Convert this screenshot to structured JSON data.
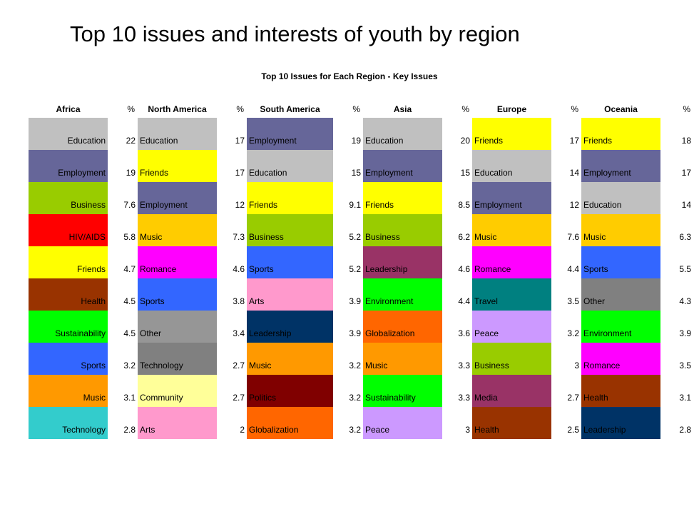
{
  "title": "Top 10 issues and interests of youth by region",
  "subtitle": "Top 10 Issues for Each Region - Key Issues",
  "colors": {
    "Education": "#c0c0c0",
    "Employment": "#666699",
    "Business": "#99cc00",
    "HIV/AIDS": "#ff0000",
    "Friends": "#ffff00",
    "Health": "#993300",
    "Sustainability": "#00ff00",
    "Sports": "#3366ff",
    "Music": "#ff9900",
    "Technology": "#33cccc",
    "Romance": "#ff00ff",
    "Other": "#969696",
    "Community": "#ffff99",
    "Arts": "#ff99cc",
    "Leadership": "#993366",
    "Politics": "#800000",
    "Globalization": "#ff6600",
    "Environment": "#00ff00",
    "Peace": "#cc99ff",
    "Travel": "#008080",
    "Media": "#993366"
  },
  "chart_data": {
    "type": "table",
    "title": "Top 10 issues and interests of youth by region",
    "subtitle": "Top 10 Issues for Each Region - Key Issues",
    "pct_label": "%",
    "regions": [
      {
        "name": "Africa",
        "rows": [
          {
            "issue": "Education",
            "value": "22",
            "color": "#c0c0c0"
          },
          {
            "issue": "Employment",
            "value": "19",
            "color": "#666699"
          },
          {
            "issue": "Business",
            "value": "7.6",
            "color": "#99cc00"
          },
          {
            "issue": "HIV/AIDS",
            "value": "5.8",
            "color": "#ff0000"
          },
          {
            "issue": "Friends",
            "value": "4.7",
            "color": "#ffff00"
          },
          {
            "issue": "Health",
            "value": "4.5",
            "color": "#993300"
          },
          {
            "issue": "Sustainability",
            "value": "4.5",
            "color": "#00ff00"
          },
          {
            "issue": "Sports",
            "value": "3.2",
            "color": "#3366ff"
          },
          {
            "issue": "Music",
            "value": "3.1",
            "color": "#ff9900"
          },
          {
            "issue": "Technology",
            "value": "2.8",
            "color": "#33cccc"
          }
        ]
      },
      {
        "name": "North America",
        "rows": [
          {
            "issue": "Education",
            "value": "17",
            "color": "#c0c0c0"
          },
          {
            "issue": "Friends",
            "value": "17",
            "color": "#ffff00"
          },
          {
            "issue": "Employment",
            "value": "12",
            "color": "#666699"
          },
          {
            "issue": "Music",
            "value": "7.3",
            "color": "#ffcc00"
          },
          {
            "issue": "Romance",
            "value": "4.6",
            "color": "#ff00ff"
          },
          {
            "issue": "Sports",
            "value": "3.8",
            "color": "#3366ff"
          },
          {
            "issue": "Other",
            "value": "3.4",
            "color": "#969696"
          },
          {
            "issue": "Technology",
            "value": "2.7",
            "color": "#808080"
          },
          {
            "issue": "Community",
            "value": "2.7",
            "color": "#ffff99"
          },
          {
            "issue": "Arts",
            "value": "2",
            "color": "#ff99cc"
          }
        ]
      },
      {
        "name": "South America",
        "rows": [
          {
            "issue": "Employment",
            "value": "19",
            "color": "#666699"
          },
          {
            "issue": "Education",
            "value": "15",
            "color": "#c0c0c0"
          },
          {
            "issue": "Friends",
            "value": "9.1",
            "color": "#ffff00"
          },
          {
            "issue": "Business",
            "value": "5.2",
            "color": "#99cc00"
          },
          {
            "issue": "Sports",
            "value": "5.2",
            "color": "#3366ff"
          },
          {
            "issue": "Arts",
            "value": "3.9",
            "color": "#ff99cc"
          },
          {
            "issue": "Leadership",
            "value": "3.9",
            "color": "#003366"
          },
          {
            "issue": "Music",
            "value": "3.2",
            "color": "#ff9900"
          },
          {
            "issue": "Politics",
            "value": "3.2",
            "color": "#800000"
          },
          {
            "issue": "Globalization",
            "value": "3.2",
            "color": "#ff6600"
          }
        ]
      },
      {
        "name": "Asia",
        "rows": [
          {
            "issue": "Education",
            "value": "20",
            "color": "#c0c0c0"
          },
          {
            "issue": "Employment",
            "value": "15",
            "color": "#666699"
          },
          {
            "issue": "Friends",
            "value": "8.5",
            "color": "#ffff00"
          },
          {
            "issue": "Business",
            "value": "6.2",
            "color": "#99cc00"
          },
          {
            "issue": "Leadership",
            "value": "4.6",
            "color": "#993366"
          },
          {
            "issue": "Environment",
            "value": "4.4",
            "color": "#00ff00"
          },
          {
            "issue": "Globalization",
            "value": "3.6",
            "color": "#ff6600"
          },
          {
            "issue": "Music",
            "value": "3.3",
            "color": "#ff9900"
          },
          {
            "issue": "Sustainability",
            "value": "3.3",
            "color": "#00ff00"
          },
          {
            "issue": "Peace",
            "value": "3",
            "color": "#cc99ff"
          }
        ]
      },
      {
        "name": "Europe",
        "rows": [
          {
            "issue": "Friends",
            "value": "17",
            "color": "#ffff00"
          },
          {
            "issue": "Education",
            "value": "14",
            "color": "#c0c0c0"
          },
          {
            "issue": "Employment",
            "value": "12",
            "color": "#666699"
          },
          {
            "issue": "Music",
            "value": "7.6",
            "color": "#ffcc00"
          },
          {
            "issue": "Romance",
            "value": "4.4",
            "color": "#ff00ff"
          },
          {
            "issue": "Travel",
            "value": "3.5",
            "color": "#008080"
          },
          {
            "issue": "Peace",
            "value": "3.2",
            "color": "#cc99ff"
          },
          {
            "issue": "Business",
            "value": "3",
            "color": "#99cc00"
          },
          {
            "issue": "Media",
            "value": "2.7",
            "color": "#993366"
          },
          {
            "issue": "Health",
            "value": "2.5",
            "color": "#993300"
          }
        ]
      },
      {
        "name": "Oceania",
        "rows": [
          {
            "issue": "Friends",
            "value": "18",
            "color": "#ffff00"
          },
          {
            "issue": "Employment",
            "value": "17",
            "color": "#666699"
          },
          {
            "issue": "Education",
            "value": "14",
            "color": "#c0c0c0"
          },
          {
            "issue": "Music",
            "value": "6.3",
            "color": "#ffcc00"
          },
          {
            "issue": "Sports",
            "value": "5.5",
            "color": "#3366ff"
          },
          {
            "issue": "Other",
            "value": "4.3",
            "color": "#808080"
          },
          {
            "issue": "Environment",
            "value": "3.9",
            "color": "#00ff00"
          },
          {
            "issue": "Romance",
            "value": "3.5",
            "color": "#ff00ff"
          },
          {
            "issue": "Health",
            "value": "3.1",
            "color": "#993300"
          },
          {
            "issue": "Leadership",
            "value": "2.8",
            "color": "#003366"
          }
        ]
      }
    ]
  }
}
